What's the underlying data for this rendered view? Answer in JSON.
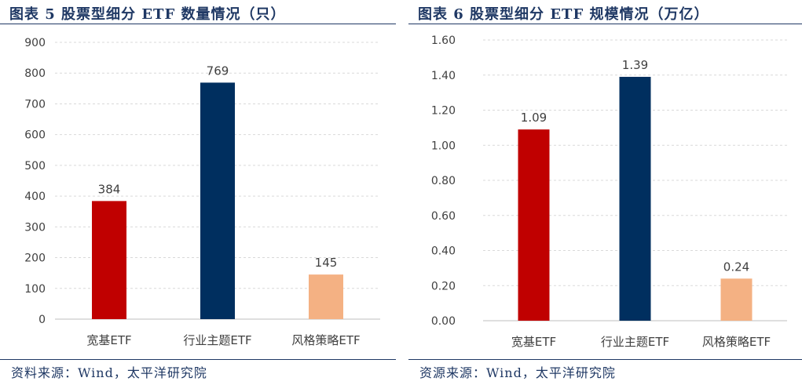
{
  "charts": [
    {
      "title": "图表 5 股票型细分 ETF 数量情况（只）",
      "source": "资料来源：Wind，太平洋研究院"
    },
    {
      "title": "图表 6 股票型细分 ETF 规模情况（万亿）",
      "source": "资源来源：Wind，太平洋研究院"
    }
  ],
  "chart_data": [
    {
      "type": "bar",
      "title": "图表 5 股票型细分 ETF 数量情况（只）",
      "categories": [
        "宽基ETF",
        "行业主题ETF",
        "风格策略ETF"
      ],
      "values": [
        384,
        769,
        145
      ],
      "value_labels": [
        "384",
        "769",
        "145"
      ],
      "colors": [
        "#c00000",
        "#002f5f",
        "#f4b183"
      ],
      "ylim": [
        0,
        900
      ],
      "yticks": [
        0,
        100,
        200,
        300,
        400,
        500,
        600,
        700,
        800,
        900
      ],
      "ytick_labels": [
        "0",
        "100",
        "200",
        "300",
        "400",
        "500",
        "600",
        "700",
        "800",
        "900"
      ],
      "xlabel": "",
      "ylabel": "",
      "grid": true,
      "legend": "none"
    },
    {
      "type": "bar",
      "title": "图表 6 股票型细分 ETF 规模情况（万亿）",
      "categories": [
        "宽基ETF",
        "行业主题ETF",
        "风格策略ETF"
      ],
      "values": [
        1.09,
        1.39,
        0.24
      ],
      "value_labels": [
        "1.09",
        "1.39",
        "0.24"
      ],
      "colors": [
        "#c00000",
        "#002f5f",
        "#f4b183"
      ],
      "ylim": [
        0,
        1.6
      ],
      "yticks": [
        0,
        0.2,
        0.4,
        0.6,
        0.8,
        1.0,
        1.2,
        1.4,
        1.6
      ],
      "ytick_labels": [
        "0.00",
        "0.20",
        "0.40",
        "0.60",
        "0.80",
        "1.00",
        "1.20",
        "1.40",
        "1.60"
      ],
      "xlabel": "",
      "ylabel": "",
      "grid": true,
      "legend": "none"
    }
  ]
}
